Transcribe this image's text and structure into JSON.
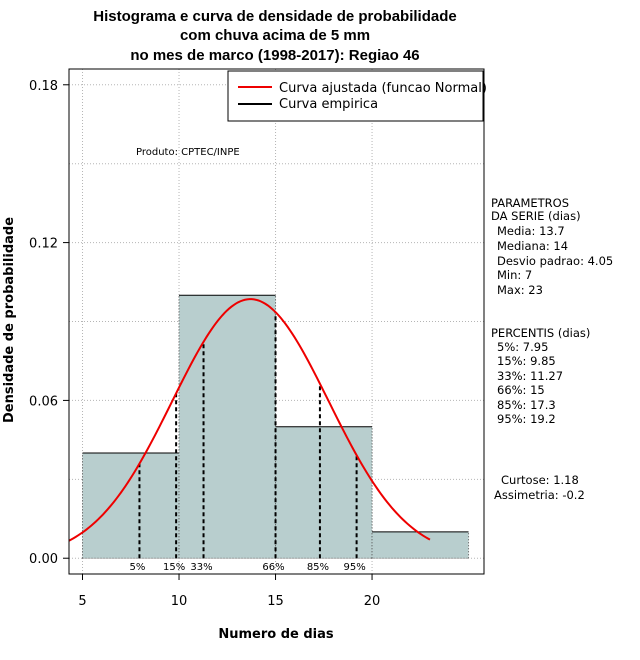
{
  "chart_data": {
    "type": "histogram",
    "title_lines": [
      "Histograma e curva de densidade de probabilidade",
      "com chuva acima de 5 mm",
      "no mes de marco (1998-2017): Regiao 46"
    ],
    "xlabel": "Numero de dias",
    "ylabel": "Densidade de probabilidade",
    "xlim": [
      4.3,
      25.8
    ],
    "ylim": [
      -0.006,
      0.186
    ],
    "x_ticks": [
      5,
      10,
      15,
      20
    ],
    "y_ticks": [
      0.0,
      0.06,
      0.12,
      0.18
    ],
    "y_tick_labels": [
      "0.00",
      "0.06",
      "0.12",
      "0.18"
    ],
    "grid": true,
    "bins": [
      {
        "from": 5,
        "to": 10,
        "density": 0.04
      },
      {
        "from": 10,
        "to": 15,
        "density": 0.1
      },
      {
        "from": 15,
        "to": 20,
        "density": 0.05
      },
      {
        "from": 20,
        "to": 25,
        "density": 0.01
      }
    ],
    "normal_curve": {
      "name": "Curva ajustada (funcao Normal)",
      "mean": 13.7,
      "sd": 4.05,
      "from": 4.3,
      "to": 23,
      "color": "#ee0000"
    },
    "empirical_curve": {
      "name": "Curva empirica",
      "color": "#000000"
    },
    "percentile_lines": [
      {
        "label": "5%",
        "x": 7.95
      },
      {
        "label": "15%",
        "x": 9.85
      },
      {
        "label": "33%",
        "x": 11.27
      },
      {
        "label": "66%",
        "x": 15
      },
      {
        "label": "85%",
        "x": 17.3
      },
      {
        "label": "95%",
        "x": 19.2
      }
    ],
    "legend_position": "top-right",
    "annotation": "Produto: CPTEC/INPE",
    "bar_fill": "#b8cece"
  },
  "side_panel": {
    "params_title_1": "PARAMETROS",
    "params_title_2": "DA SERIE (dias)",
    "params": [
      "Media: 13.7",
      "Mediana: 14",
      "Desvio padrao: 4.05",
      "Min: 7",
      "Max: 23"
    ],
    "percentis_title": "PERCENTIS (dias)",
    "percentis": [
      "5%: 7.95",
      "15%: 9.85",
      "33%: 11.27",
      "66%: 15",
      "85%: 17.3",
      "95%: 19.2"
    ],
    "curtose": "Curtose: 1.18",
    "assimetria": "Assimetria: -0.2"
  }
}
